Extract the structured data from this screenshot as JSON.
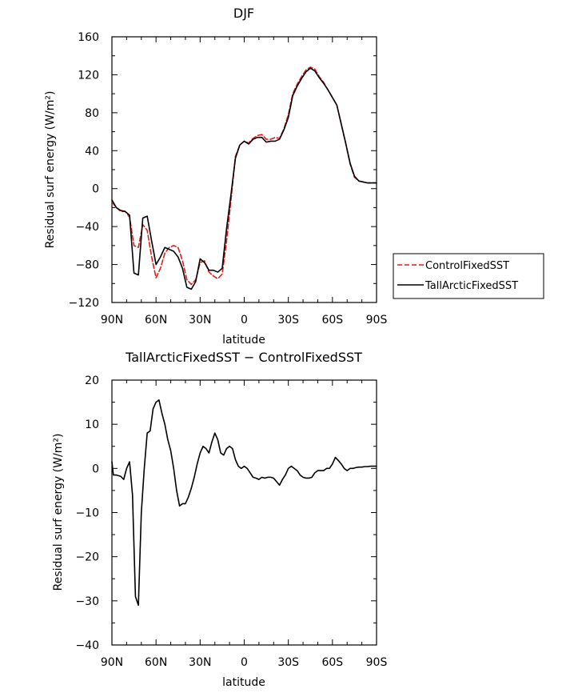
{
  "chart_data": [
    {
      "type": "line",
      "title": "DJF",
      "xlabel": "latitude",
      "ylabel": "Residual surf energy (W/m²)",
      "xlim": [
        -90,
        90
      ],
      "ylim": [
        -120,
        160
      ],
      "xticks": [
        -90,
        -60,
        -30,
        0,
        30,
        60,
        90
      ],
      "xtick_labels": [
        "90N",
        "60N",
        "30N",
        "0",
        "30S",
        "60S",
        "90S"
      ],
      "yticks": [
        -120,
        -80,
        -40,
        0,
        40,
        80,
        120,
        160
      ],
      "ytick_labels": [
        "−120",
        "−80",
        "−40",
        "0",
        "40",
        "80",
        "120",
        "160"
      ],
      "grid": false,
      "legend": "right",
      "series": [
        {
          "name": "ControlFixedSST",
          "color": "#e41a1c",
          "dash": "dashed",
          "x": [
            -90,
            -87,
            -84,
            -81,
            -78,
            -75,
            -72,
            -69,
            -66,
            -63,
            -60,
            -57,
            -54,
            -51,
            -48,
            -45,
            -42,
            -39,
            -36,
            -33,
            -30,
            -27,
            -24,
            -21,
            -18,
            -15,
            -12,
            -9,
            -6,
            -3,
            0,
            3,
            6,
            9,
            12,
            15,
            18,
            21,
            24,
            27,
            30,
            33,
            36,
            39,
            42,
            45,
            48,
            51,
            54,
            57,
            60,
            63,
            66,
            69,
            72,
            75,
            78,
            81,
            84,
            87,
            90
          ],
          "y": [
            -14,
            -20,
            -24,
            -24,
            -30,
            -60,
            -62,
            -38,
            -44,
            -72,
            -94,
            -84,
            -68,
            -62,
            -60,
            -62,
            -76,
            -96,
            -101,
            -96,
            -78,
            -76,
            -88,
            -92,
            -95,
            -90,
            -55,
            -12,
            34,
            46,
            50,
            48,
            53,
            56,
            57,
            52,
            52,
            54,
            53,
            63,
            78,
            100,
            110,
            118,
            125,
            128,
            126,
            118,
            112,
            104,
            96,
            88,
            68,
            48,
            26,
            12,
            8,
            7,
            6,
            6,
            6
          ]
        },
        {
          "name": "TallArcticFixedSST",
          "color": "#000000",
          "dash": "solid",
          "x": [
            -90,
            -87,
            -84,
            -81,
            -78,
            -75,
            -72,
            -69,
            -66,
            -63,
            -60,
            -57,
            -54,
            -51,
            -48,
            -45,
            -42,
            -39,
            -36,
            -33,
            -30,
            -27,
            -24,
            -21,
            -18,
            -15,
            -12,
            -9,
            -6,
            -3,
            0,
            3,
            6,
            9,
            12,
            15,
            18,
            21,
            24,
            27,
            30,
            33,
            36,
            39,
            42,
            45,
            48,
            51,
            54,
            57,
            60,
            63,
            66,
            69,
            72,
            75,
            78,
            81,
            84,
            87,
            90
          ],
          "y": [
            -12,
            -20,
            -23,
            -24,
            -28,
            -89,
            -91,
            -31,
            -29,
            -55,
            -80,
            -72,
            -62,
            -64,
            -66,
            -72,
            -84,
            -104,
            -106,
            -98,
            -74,
            -78,
            -86,
            -86,
            -88,
            -84,
            -42,
            -6,
            32,
            46,
            50,
            47,
            52,
            54,
            54,
            49,
            50,
            50,
            52,
            62,
            75,
            98,
            108,
            116,
            123,
            127,
            124,
            117,
            111,
            104,
            96,
            88,
            68,
            48,
            27,
            13,
            8,
            7,
            6,
            6,
            6
          ]
        }
      ]
    },
    {
      "type": "line",
      "title": "TallArcticFixedSST − ControlFixedSST",
      "xlabel": "latitude",
      "ylabel": "Residual surf energy (W/m²)",
      "xlim": [
        -90,
        90
      ],
      "ylim": [
        -40,
        20
      ],
      "xticks": [
        -90,
        -60,
        -30,
        0,
        30,
        60,
        90
      ],
      "xtick_labels": [
        "90N",
        "60N",
        "30N",
        "0",
        "30S",
        "60S",
        "90S"
      ],
      "yticks": [
        -40,
        -30,
        -20,
        -10,
        0,
        10,
        20
      ],
      "ytick_labels": [
        "−40",
        "−30",
        "−20",
        "−10",
        "0",
        "10",
        "20"
      ],
      "grid": false,
      "series": [
        {
          "name": "",
          "color": "#000000",
          "dash": "solid",
          "x": [
            -90,
            -89,
            -87,
            -84,
            -82,
            -80,
            -78,
            -76,
            -74,
            -72,
            -70,
            -68,
            -66,
            -64,
            -62,
            -60,
            -58,
            -56,
            -54,
            -52,
            -50,
            -48,
            -46,
            -44,
            -42,
            -40,
            -38,
            -36,
            -34,
            -32,
            -30,
            -28,
            -26,
            -24,
            -22,
            -20,
            -18,
            -16,
            -14,
            -12,
            -10,
            -8,
            -6,
            -4,
            -2,
            0,
            2,
            4,
            6,
            8,
            10,
            12,
            14,
            16,
            18,
            20,
            22,
            24,
            26,
            28,
            30,
            32,
            34,
            36,
            38,
            40,
            42,
            44,
            46,
            48,
            50,
            52,
            54,
            56,
            58,
            60,
            62,
            64,
            66,
            68,
            70,
            72,
            74,
            76,
            78,
            80,
            82,
            84,
            86,
            88,
            90
          ],
          "y": [
            1.5,
            -1.5,
            -1.5,
            -1.8,
            -2.5,
            0,
            1.5,
            -6,
            -29,
            -31,
            -10,
            0,
            8,
            8.5,
            13.5,
            15,
            15.5,
            12.5,
            10,
            6.5,
            4,
            0,
            -5,
            -8.5,
            -8,
            -8,
            -6.5,
            -4.5,
            -2,
            1,
            3.5,
            5,
            4.5,
            3.5,
            6,
            8,
            6.5,
            3.5,
            3,
            4.5,
            5,
            4.5,
            2,
            0.5,
            0,
            0.5,
            0,
            -1,
            -2,
            -2.2,
            -2.5,
            -2,
            -2.2,
            -2,
            -2,
            -2.2,
            -3,
            -3.8,
            -2.5,
            -1.5,
            0,
            0.5,
            0,
            -0.5,
            -1.5,
            -2,
            -2.2,
            -2.2,
            -2,
            -1,
            -0.5,
            -0.5,
            -0.5,
            0,
            0,
            1,
            2.5,
            1.8,
            1,
            0,
            -0.5,
            0,
            0,
            0.2,
            0.3,
            0.3,
            0.4,
            0.4,
            0.5,
            0.5,
            0.5
          ]
        }
      ]
    }
  ]
}
